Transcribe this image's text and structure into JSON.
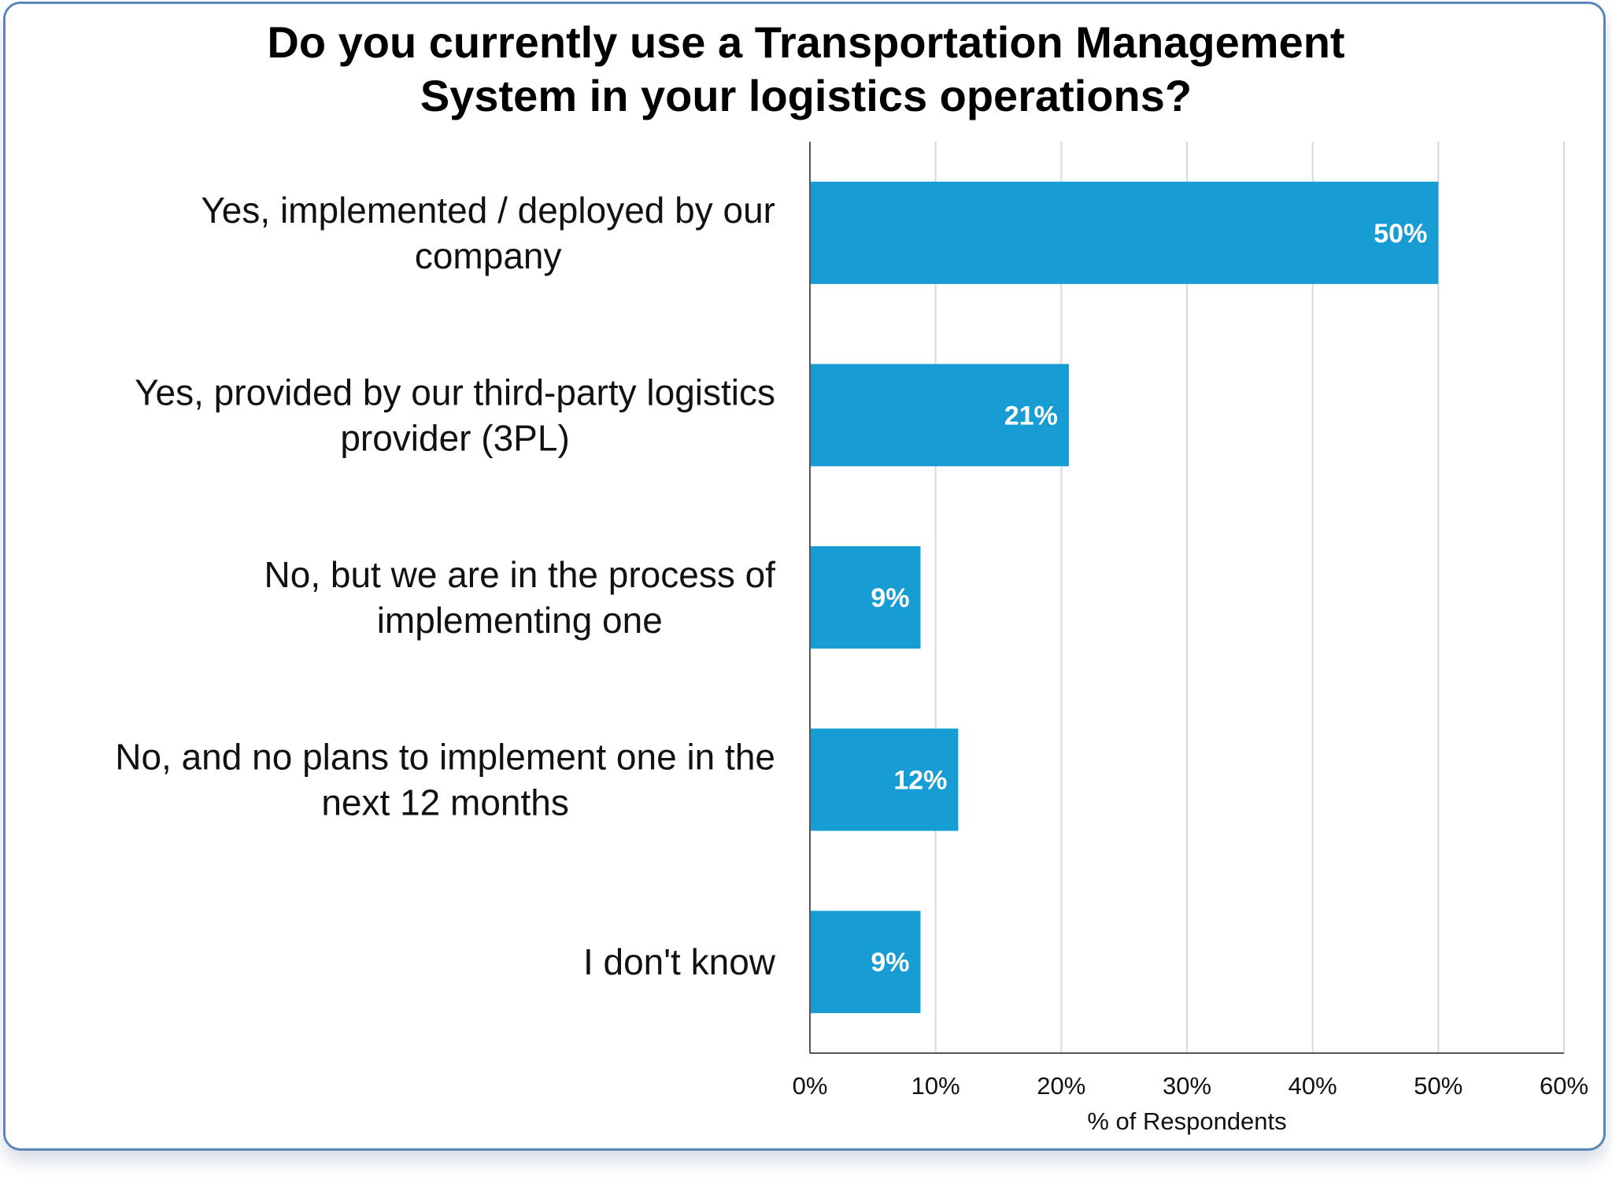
{
  "colors": {
    "bar": "#179dd3",
    "grid": "#d9d9d9",
    "axis": "#555555",
    "border": "#5b87b8"
  },
  "chart_data": {
    "type": "bar",
    "orientation": "horizontal",
    "title_lines": [
      "Do you currently use a Transportation Management",
      "System in your logistics operations?"
    ],
    "categories": [
      [
        "Yes, implemented / deployed by our",
        "company"
      ],
      [
        "Yes, provided by our third-party logistics",
        "provider (3PL)"
      ],
      [
        "No, but we are in the process of",
        "implementing one"
      ],
      [
        "No, and no plans to implement one in the",
        "next 12 months"
      ],
      [
        "I don't know"
      ]
    ],
    "values": [
      50,
      20.6,
      8.8,
      11.8,
      8.8
    ],
    "data_labels": [
      "50%",
      "21%",
      "9%",
      "12%",
      "9%"
    ],
    "xlim": [
      0,
      60
    ],
    "xticks": [
      0,
      10,
      20,
      30,
      40,
      50,
      60
    ],
    "xtick_labels": [
      "0%",
      "10%",
      "20%",
      "30%",
      "40%",
      "50%",
      "60%"
    ],
    "xlabel": "% of Respondents",
    "ylabel": "",
    "grid": true,
    "legend": "none"
  }
}
